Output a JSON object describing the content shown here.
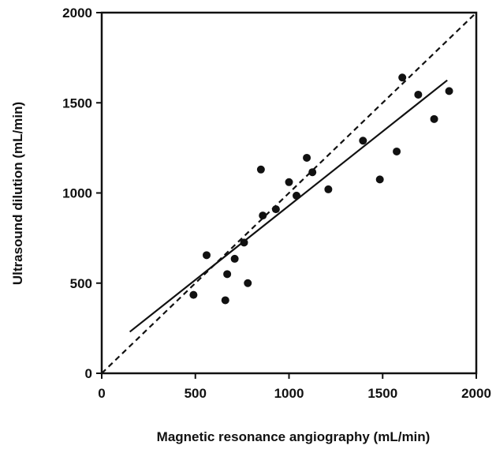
{
  "chart_data": {
    "type": "scatter",
    "title": "",
    "xlabel": "Magnetic resonance angiography (mL/min)",
    "ylabel": "Ultrasound dilution (mL/min)",
    "xlim": [
      0,
      2000
    ],
    "ylim": [
      0,
      2000
    ],
    "x_ticks": [
      0,
      500,
      1000,
      1500,
      2000
    ],
    "y_ticks": [
      0,
      500,
      1000,
      1500,
      2000
    ],
    "x_tick_labels": [
      "0",
      "500",
      "1000",
      "1500",
      "2000"
    ],
    "y_tick_labels": [
      "0",
      "500",
      "1000",
      "1500",
      "2000"
    ],
    "grid": false,
    "legend": "none",
    "points": [
      {
        "x": 490,
        "y": 435
      },
      {
        "x": 560,
        "y": 655
      },
      {
        "x": 660,
        "y": 405
      },
      {
        "x": 670,
        "y": 550
      },
      {
        "x": 710,
        "y": 635
      },
      {
        "x": 760,
        "y": 725
      },
      {
        "x": 780,
        "y": 500
      },
      {
        "x": 850,
        "y": 1130
      },
      {
        "x": 860,
        "y": 875
      },
      {
        "x": 930,
        "y": 910
      },
      {
        "x": 1000,
        "y": 1060
      },
      {
        "x": 1040,
        "y": 985
      },
      {
        "x": 1095,
        "y": 1195
      },
      {
        "x": 1125,
        "y": 1115
      },
      {
        "x": 1210,
        "y": 1020
      },
      {
        "x": 1395,
        "y": 1290
      },
      {
        "x": 1485,
        "y": 1075
      },
      {
        "x": 1575,
        "y": 1230
      },
      {
        "x": 1605,
        "y": 1640
      },
      {
        "x": 1690,
        "y": 1545
      },
      {
        "x": 1775,
        "y": 1410
      },
      {
        "x": 1855,
        "y": 1565
      }
    ],
    "regression_line": {
      "x": [
        150,
        1845
      ],
      "y": [
        230,
        1625
      ],
      "style": "solid"
    },
    "identity_line": {
      "x": [
        0,
        2000
      ],
      "y": [
        0,
        2000
      ],
      "style": "dashed"
    },
    "colors": {
      "points": "#111111",
      "lines": "#111111",
      "axes": "#111111",
      "background": "#ffffff"
    }
  }
}
